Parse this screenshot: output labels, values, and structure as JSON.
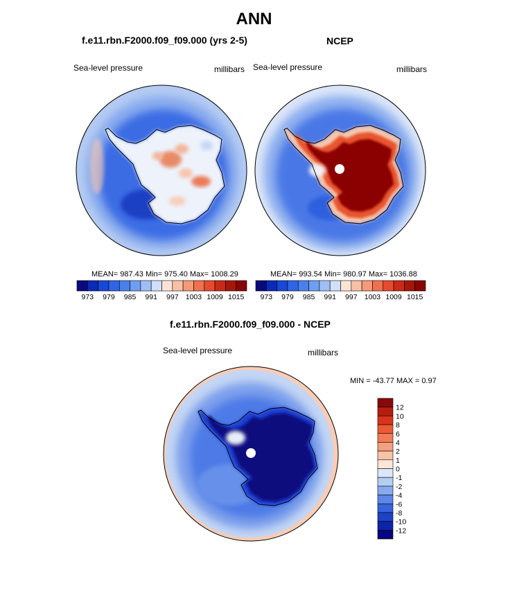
{
  "main_title": "ANN",
  "colors": {
    "antarctica_outline": "#000000",
    "pole_marker": "#ffffff"
  },
  "chart_data": [
    {
      "type": "heatmap",
      "projection": "south-polar-stereographic",
      "title": "f.e11.rbn.F2000.f09_f09.000 (yrs 2-5)",
      "left_label": "Sea-level pressure",
      "right_label": "millibars",
      "stats": "MEAN= 987.43  Min= 975.40  Max= 1008.29",
      "mean": 987.43,
      "min": 975.4,
      "max": 1008.29,
      "legend_orientation": "horizontal",
      "colorbar_levels": [
        973,
        976,
        979,
        982,
        985,
        988,
        991,
        994,
        997,
        1000,
        1003,
        1006,
        1009,
        1012,
        1015
      ],
      "colorbar_tick_labels": [
        "973",
        "979",
        "985",
        "991",
        "997",
        "1003",
        "1009",
        "1015"
      ],
      "colorbar_colors": [
        "#0a0a7e",
        "#0c2ab8",
        "#1848d6",
        "#2f64e4",
        "#4a80ec",
        "#6e9ef2",
        "#9ebef6",
        "#d0e0f8",
        "#fbe4d6",
        "#f8c0a4",
        "#f59a78",
        "#f07050",
        "#e44b2f",
        "#c82a17",
        "#a5170c",
        "#870505"
      ]
    },
    {
      "type": "heatmap",
      "projection": "south-polar-stereographic",
      "title": "NCEP",
      "left_label": "Sea-level pressure",
      "right_label": "millibars",
      "stats": "MEAN= 993.54  Min= 980.97  Max= 1036.88",
      "mean": 993.54,
      "min": 980.97,
      "max": 1036.88,
      "legend_orientation": "horizontal",
      "colorbar_levels": [
        973,
        976,
        979,
        982,
        985,
        988,
        991,
        994,
        997,
        1000,
        1003,
        1006,
        1009,
        1012,
        1015
      ],
      "colorbar_tick_labels": [
        "973",
        "979",
        "985",
        "991",
        "997",
        "1003",
        "1009",
        "1015"
      ],
      "colorbar_colors": [
        "#0a0a7e",
        "#0c2ab8",
        "#1848d6",
        "#2f64e4",
        "#4a80ec",
        "#6e9ef2",
        "#9ebef6",
        "#d0e0f8",
        "#fbe4d6",
        "#f8c0a4",
        "#f59a78",
        "#f07050",
        "#e44b2f",
        "#c82a17",
        "#a5170c",
        "#870505"
      ]
    },
    {
      "type": "heatmap",
      "projection": "south-polar-stereographic",
      "title": "f.e11.rbn.F2000.f09_f09.000 - NCEP",
      "left_label": "Sea-level pressure",
      "right_label": "millibars",
      "stats": "MIN = -43.77 MAX =   0.97",
      "min": -43.77,
      "max": 0.97,
      "legend_orientation": "vertical",
      "colorbar_tick_labels": [
        "12",
        "10",
        "8",
        "6",
        "4",
        "2",
        "1",
        "0",
        "-1",
        "-2",
        "-4",
        "-6",
        "-8",
        "-10",
        "-12"
      ],
      "colorbar_colors": [
        "#8a0808",
        "#b51d0f",
        "#d9341b",
        "#ee5a35",
        "#f27c55",
        "#f59f7e",
        "#f8c4a8",
        "#fce6d8",
        "#dce8f8",
        "#b4cdf4",
        "#87aaee",
        "#5d86e8",
        "#3763dc",
        "#1c42c8",
        "#0c24a8",
        "#06067e"
      ]
    }
  ]
}
